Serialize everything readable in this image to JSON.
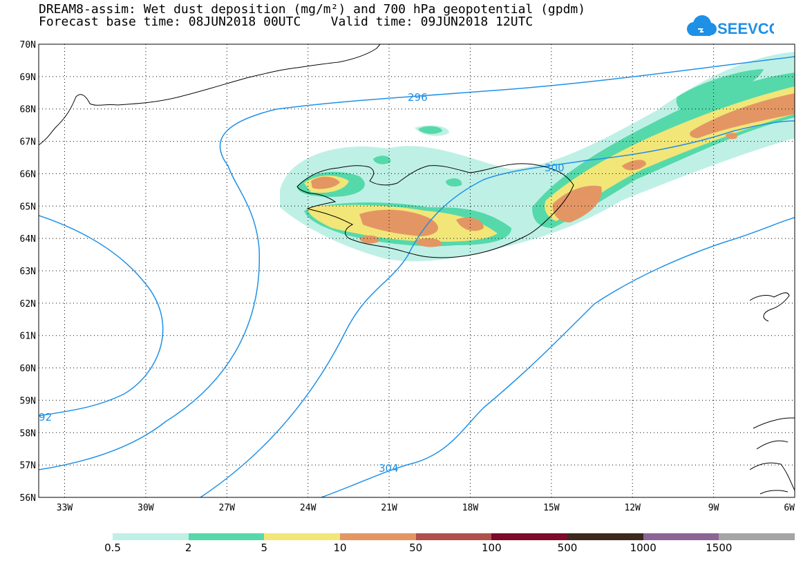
{
  "title_line1": "DREAM8-assim: Wet dust deposition (mg/m²) and 700 hPa geopotential (gpdm)",
  "title_line2": "Forecast base time: 08JUN2018 00UTC    Valid time: 09JUN2018 12UTC",
  "logo_text": "SEEVCCC",
  "lat_labels": [
    "70N",
    "69N",
    "68N",
    "67N",
    "66N",
    "65N",
    "64N",
    "63N",
    "62N",
    "61N",
    "60N",
    "59N",
    "58N",
    "57N",
    "56N"
  ],
  "lon_labels": [
    "33W",
    "30W",
    "27W",
    "24W",
    "21W",
    "18W",
    "15W",
    "12W",
    "9W",
    "6W"
  ],
  "contour_labels": [
    "296",
    "300",
    "304",
    "92"
  ],
  "legend": {
    "colors": [
      "#bff0e6",
      "#55d9aa",
      "#f2e678",
      "#e39664",
      "#b0504b",
      "#7d0a28",
      "#3c281e",
      "#8c6496",
      "#a5a5a5"
    ],
    "labels": [
      "0.5",
      "2",
      "5",
      "10",
      "50",
      "100",
      "500",
      "1000",
      "1500"
    ]
  },
  "colors": {
    "contour": "#1e90e6",
    "coast": "#000000"
  }
}
